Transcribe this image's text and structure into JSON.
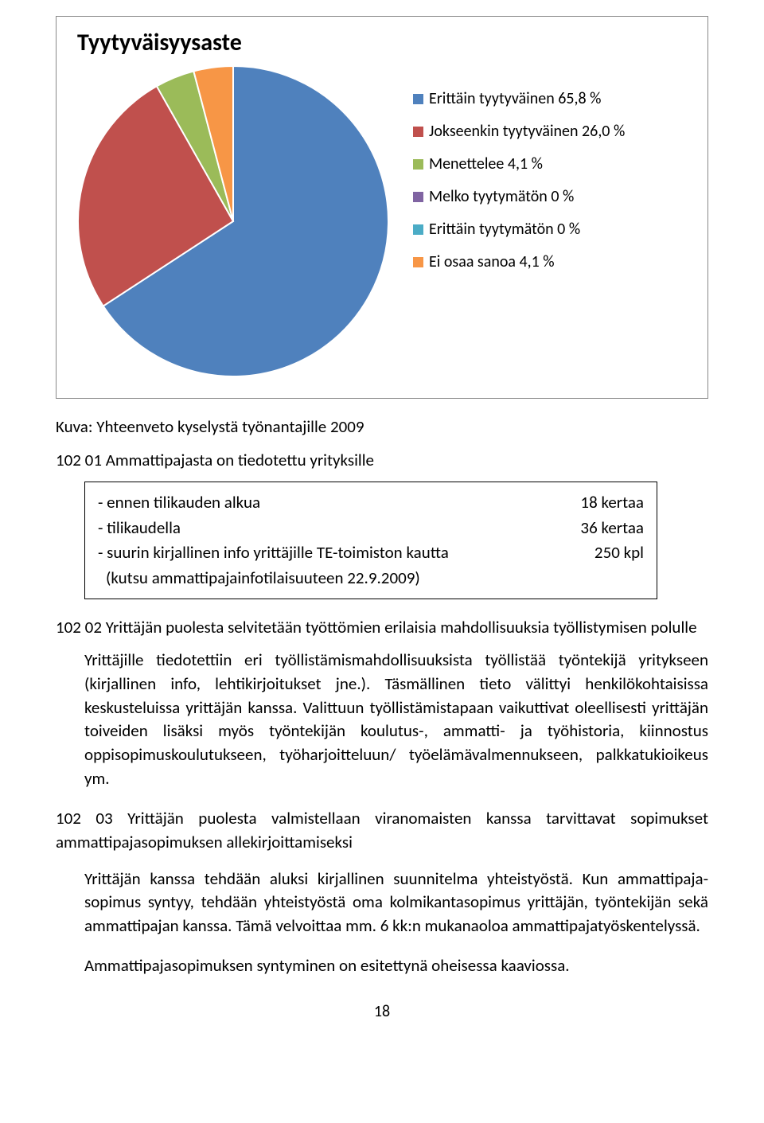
{
  "chart": {
    "type": "pie",
    "title": "Tyytyväisyysaste",
    "title_fontsize": 30,
    "title_fontweight": 700,
    "background_color": "#ffffff",
    "border_color": "#888888",
    "pie_border_color": "#ffffff",
    "pie_border_width": 2,
    "legend_fontsize": 20,
    "slices": [
      {
        "label": "Erittäin tyytyväinen 65,8 %",
        "value": 65.8,
        "color": "#4f81bd"
      },
      {
        "label": "Jokseenkin tyytyväinen 26,0 %",
        "value": 26.0,
        "color": "#c0504d"
      },
      {
        "label": "Menettelee 4,1 %",
        "value": 4.1,
        "color": "#9bbb59"
      },
      {
        "label": "Melko tyytymätön  0 %",
        "value": 0.0,
        "color": "#8064a2"
      },
      {
        "label": "Erittäin tyytymätön  0 %",
        "value": 0.0,
        "color": "#4bacc6"
      },
      {
        "label": "Ei osaa sanoa 4,1 %",
        "value": 4.1,
        "color": "#f79646"
      }
    ]
  },
  "caption": "Kuva: Yhteenveto kyselystä työnantajille 2009",
  "section_102_01": "102 01 Ammattipajasta on tiedotettu yrityksille",
  "info_rows": [
    {
      "left": "- ennen tilikauden alkua",
      "right": "18 kertaa"
    },
    {
      "left": "- tilikaudella",
      "right": "36 kertaa"
    },
    {
      "left": "- suurin kirjallinen info yrittäjille TE-toimiston kautta",
      "right": "250 kpl"
    }
  ],
  "info_note": "(kutsu ammattipajainfotilaisuuteen 22.9.2009)",
  "section_102_02": "102 02 Yrittäjän puolesta selvitetään työttömien erilaisia mahdollisuuksia työllistymisen polulle",
  "para_102_02": "Yrittäjille tiedotettiin eri työllistämismahdollisuuksista työllistää työntekijä yritykseen (kirjallinen info, lehtikirjoitukset jne.).  Täsmällinen tieto välittyi henkilökohtaisissa keskusteluissa yrittäjän kanssa. Valittuun työllistämistapaan vaikuttivat oleellisesti yrittäjän toiveiden lisäksi myös työntekijän koulutus-, ammatti- ja työhistoria, kiinnostus oppisopimuskoulutukseen,  työharjoitteluun/ työelämävalmennukseen, palkkatukioikeus ym.",
  "section_102_03": "102 03 Yrittäjän puolesta valmistellaan viranomaisten kanssa tarvittavat sopimukset ammattipajasopimuksen allekirjoittamiseksi",
  "para_102_03a": "Yrittäjän kanssa tehdään aluksi kirjallinen suunnitelma yhteistyöstä. Kun ammattipaja-sopimus syntyy, tehdään yhteistyöstä oma kolmikantasopimus yrittäjän, työntekijän sekä ammattipajan kanssa. Tämä velvoittaa mm. 6 kk:n mukanaoloa ammattipajatyöskentelyssä.",
  "para_102_03b": "Ammattipajasopimuksen syntyminen on esitettynä oheisessa kaaviossa.",
  "page_number": "18"
}
